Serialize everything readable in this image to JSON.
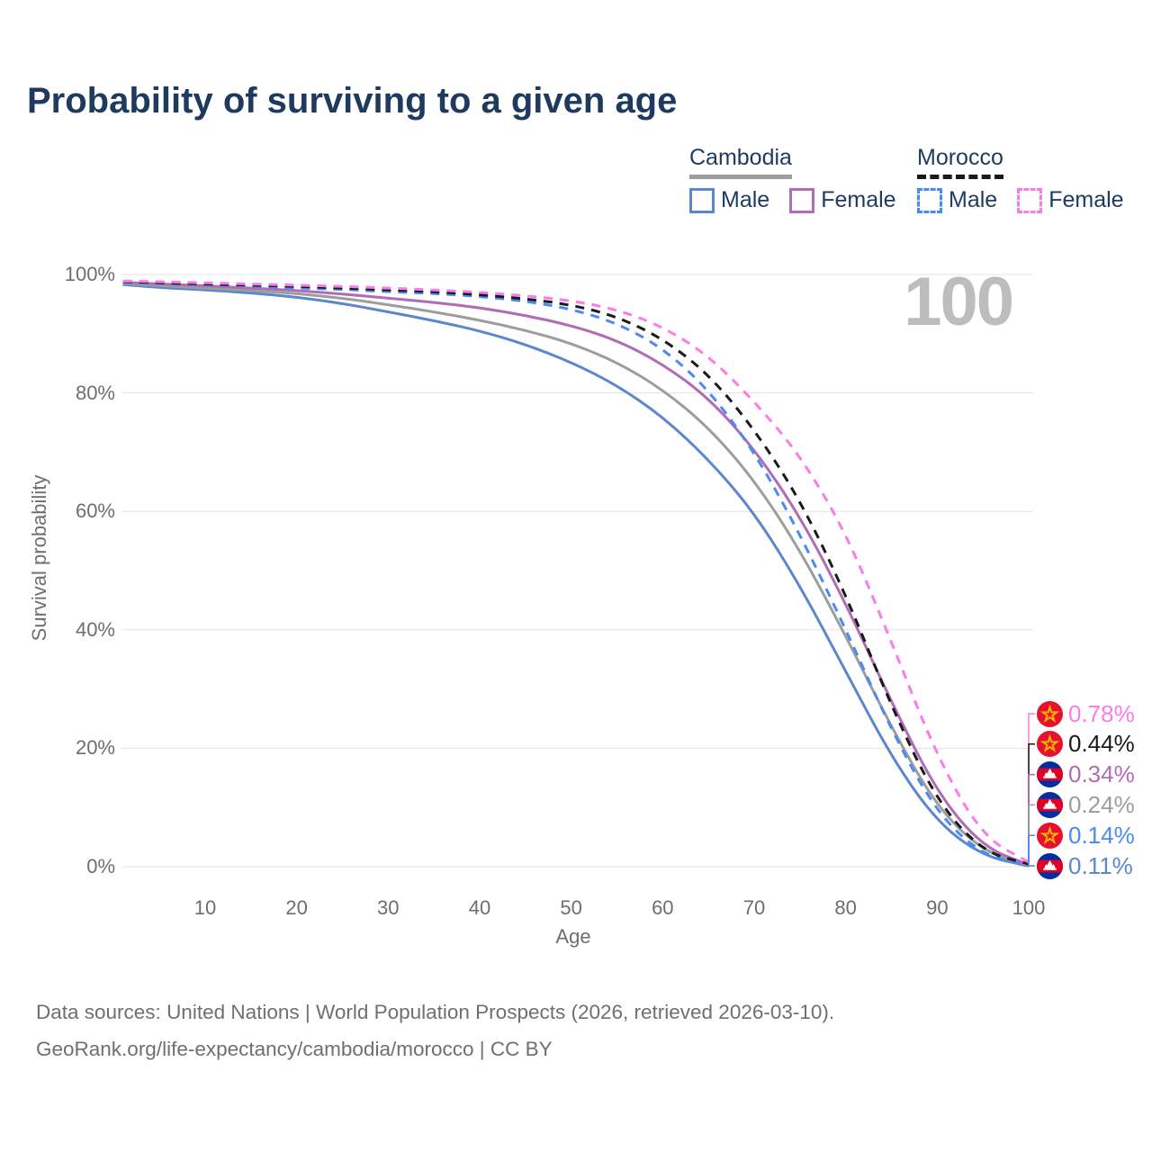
{
  "title": "Probability of surviving to a given age",
  "watermark": "100",
  "colors": {
    "title_text": "#1e3a5f",
    "axis_text": "#6e6e6e",
    "gridline": "#e3e3e3",
    "watermark": "#bdbdbd",
    "footer_text": "#6f6f6f",
    "cambodia_male": "#5b87cd",
    "cambodia_female": "#b06cb5",
    "cambodia_both": "#9d9d9d",
    "morocco_male": "#4a8af4",
    "morocco_both": "#1a1a1a",
    "morocco_female": "#fb7ce8"
  },
  "legend": {
    "groups": [
      {
        "name": "Cambodia",
        "line_style": "solid",
        "underline_color": "#9d9d9d",
        "items": [
          {
            "label": "Male",
            "color": "#5b87cd"
          },
          {
            "label": "Female",
            "color": "#b06cb5"
          }
        ]
      },
      {
        "name": "Morocco",
        "line_style": "dashed",
        "underline_color": "#1a1a1a",
        "items": [
          {
            "label": "Male",
            "color": "#4a8af4"
          },
          {
            "label": "Female",
            "color": "#fb7ce8"
          }
        ]
      }
    ]
  },
  "chart_data": {
    "type": "line",
    "title": "Probability of surviving to a given age",
    "xlabel": "Age",
    "ylabel": "Survival probability",
    "xlim": [
      0,
      100
    ],
    "ylim": [
      0,
      100
    ],
    "x_ticks": [
      10,
      20,
      30,
      40,
      50,
      60,
      70,
      80,
      90,
      100
    ],
    "y_ticks": [
      0,
      20,
      40,
      60,
      80,
      100
    ],
    "y_tick_format": "percent",
    "grid": "horizontal",
    "legend_position": "top-right",
    "x": [
      1,
      5,
      10,
      15,
      20,
      25,
      30,
      35,
      40,
      45,
      50,
      55,
      60,
      65,
      70,
      75,
      80,
      85,
      90,
      95,
      100
    ],
    "series": [
      {
        "name": "Cambodia Male",
        "country": "Cambodia",
        "sex": "Male",
        "color": "#5b87cd",
        "dash": false,
        "values": [
          98.3,
          97.8,
          97.4,
          96.9,
          96.2,
          95.1,
          93.7,
          92.2,
          90.5,
          88.2,
          85.2,
          81.3,
          76.0,
          68.8,
          59.8,
          47.5,
          33.0,
          18.5,
          7.5,
          1.8,
          0.11
        ]
      },
      {
        "name": "Cambodia",
        "country": "Cambodia",
        "sex": "Both",
        "color": "#9d9d9d",
        "dash": false,
        "values": [
          98.5,
          98.1,
          97.7,
          97.3,
          96.8,
          96.0,
          94.9,
          93.7,
          92.3,
          90.6,
          88.4,
          85.2,
          80.6,
          74.2,
          65.3,
          53.5,
          39.0,
          23.5,
          10.0,
          2.6,
          0.24
        ]
      },
      {
        "name": "Cambodia Female",
        "country": "Cambodia",
        "sex": "Female",
        "color": "#b06cb5",
        "dash": false,
        "values": [
          98.7,
          98.4,
          98.1,
          97.7,
          97.3,
          96.7,
          96.0,
          95.3,
          94.4,
          93.1,
          91.4,
          88.9,
          84.9,
          79.2,
          70.6,
          59.2,
          44.5,
          27.8,
          12.5,
          3.3,
          0.34
        ]
      },
      {
        "name": "Morocco Male",
        "country": "Morocco",
        "sex": "Male",
        "color": "#4a8af4",
        "dash": true,
        "values": [
          98.7,
          98.5,
          98.3,
          98.0,
          97.7,
          97.5,
          97.1,
          96.8,
          96.3,
          95.5,
          94.2,
          91.8,
          87.6,
          80.6,
          70.1,
          56.2,
          40.1,
          23.0,
          9.0,
          1.9,
          0.14
        ]
      },
      {
        "name": "Morocco",
        "country": "Morocco",
        "sex": "Both",
        "color": "#1a1a1a",
        "dash": true,
        "values": [
          98.8,
          98.6,
          98.4,
          98.2,
          98.0,
          97.7,
          97.4,
          97.1,
          96.6,
          95.9,
          94.9,
          92.9,
          89.2,
          83.2,
          73.9,
          62.0,
          46.0,
          27.0,
          11.0,
          2.5,
          0.44
        ]
      },
      {
        "name": "Morocco Female",
        "country": "Morocco",
        "sex": "Female",
        "color": "#fb7ce8",
        "dash": true,
        "values": [
          98.9,
          98.8,
          98.6,
          98.4,
          98.2,
          98.0,
          97.7,
          97.4,
          97.0,
          96.4,
          95.6,
          94.1,
          91.2,
          86.3,
          78.6,
          69.5,
          56.5,
          38.0,
          18.5,
          5.0,
          0.78
        ]
      }
    ],
    "end_labels": [
      {
        "value": "0.78%",
        "series": "Morocco Female",
        "flag": "morocco",
        "color": "#fb7ce8"
      },
      {
        "value": "0.44%",
        "series": "Morocco",
        "flag": "morocco",
        "color": "#1a1a1a"
      },
      {
        "value": "0.34%",
        "series": "Cambodia Female",
        "flag": "cambodia",
        "color": "#b06cb5"
      },
      {
        "value": "0.24%",
        "series": "Cambodia",
        "flag": "cambodia",
        "color": "#9d9d9d"
      },
      {
        "value": "0.14%",
        "series": "Morocco Male",
        "flag": "morocco",
        "color": "#4a8af4"
      },
      {
        "value": "0.11%",
        "series": "Cambodia Male",
        "flag": "cambodia",
        "color": "#5b87cd"
      }
    ]
  },
  "footer": {
    "line1": "Data sources: United Nations | World Population Prospects (2026, retrieved 2026-03-10).",
    "line2": "GeoRank.org/life-expectancy/cambodia/morocco | CC BY"
  }
}
